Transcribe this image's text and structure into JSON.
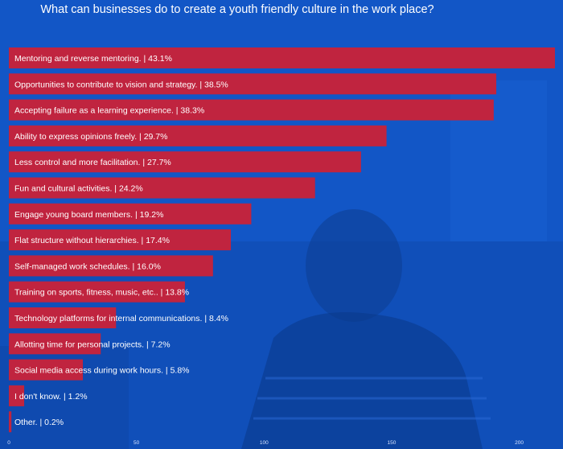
{
  "chart_data": {
    "type": "bar",
    "orientation": "horizontal",
    "title": "What can businesses do to create a youth friendly culture in the work place?",
    "bar_color": "#c0243f",
    "categories": [
      "Mentoring and reverse mentoring.",
      "Opportunities to contribute to vision and strategy.",
      "Accepting failure as a learning experience.",
      "Ability to express opinions freely.",
      "Less control and more facilitation.",
      "Fun and cultural activities.",
      "Engage young board members.",
      "Flat structure without hierarchies.",
      "Self-managed work schedules.",
      "Training on sports, fitness, music, etc..",
      "Technology platforms for internal communications.",
      "Allotting time for personal projects.",
      "Social media access during work hours.",
      "I don't know.",
      "Other."
    ],
    "labels": [
      "Mentoring and reverse mentoring. | 43.1%",
      "Opportunities to contribute to vision and strategy. | 38.5%",
      "Accepting failure as a learning experience. | 38.3%",
      "Ability to express opinions freely. | 29.7%",
      "Less control and more facilitation. | 27.7%",
      "Fun and cultural activities. | 24.2%",
      "Engage young board members. | 19.2%",
      "Flat structure without hierarchies. | 17.4%",
      "Self-managed work schedules. | 16.0%",
      "Training on sports, fitness, music, etc.. | 13.8%",
      "Technology platforms for internal communications. | 8.4%",
      "Allotting time for personal projects. | 7.2%",
      "Social media access during work hours. | 5.8%",
      "I don't know. | 1.2%",
      "Other. | 0.2%"
    ],
    "percent": [
      43.1,
      38.5,
      38.3,
      29.7,
      27.7,
      24.2,
      19.2,
      17.4,
      16.0,
      13.8,
      8.4,
      7.2,
      5.8,
      1.2,
      0.2
    ],
    "values": [
      214,
      191,
      190,
      148,
      138,
      120,
      95,
      87,
      80,
      69,
      42,
      36,
      29,
      6,
      1
    ],
    "xlim": [
      0,
      214
    ],
    "xticks": [
      0,
      50,
      100,
      150,
      200
    ],
    "xlabel": "",
    "ylabel": ""
  }
}
